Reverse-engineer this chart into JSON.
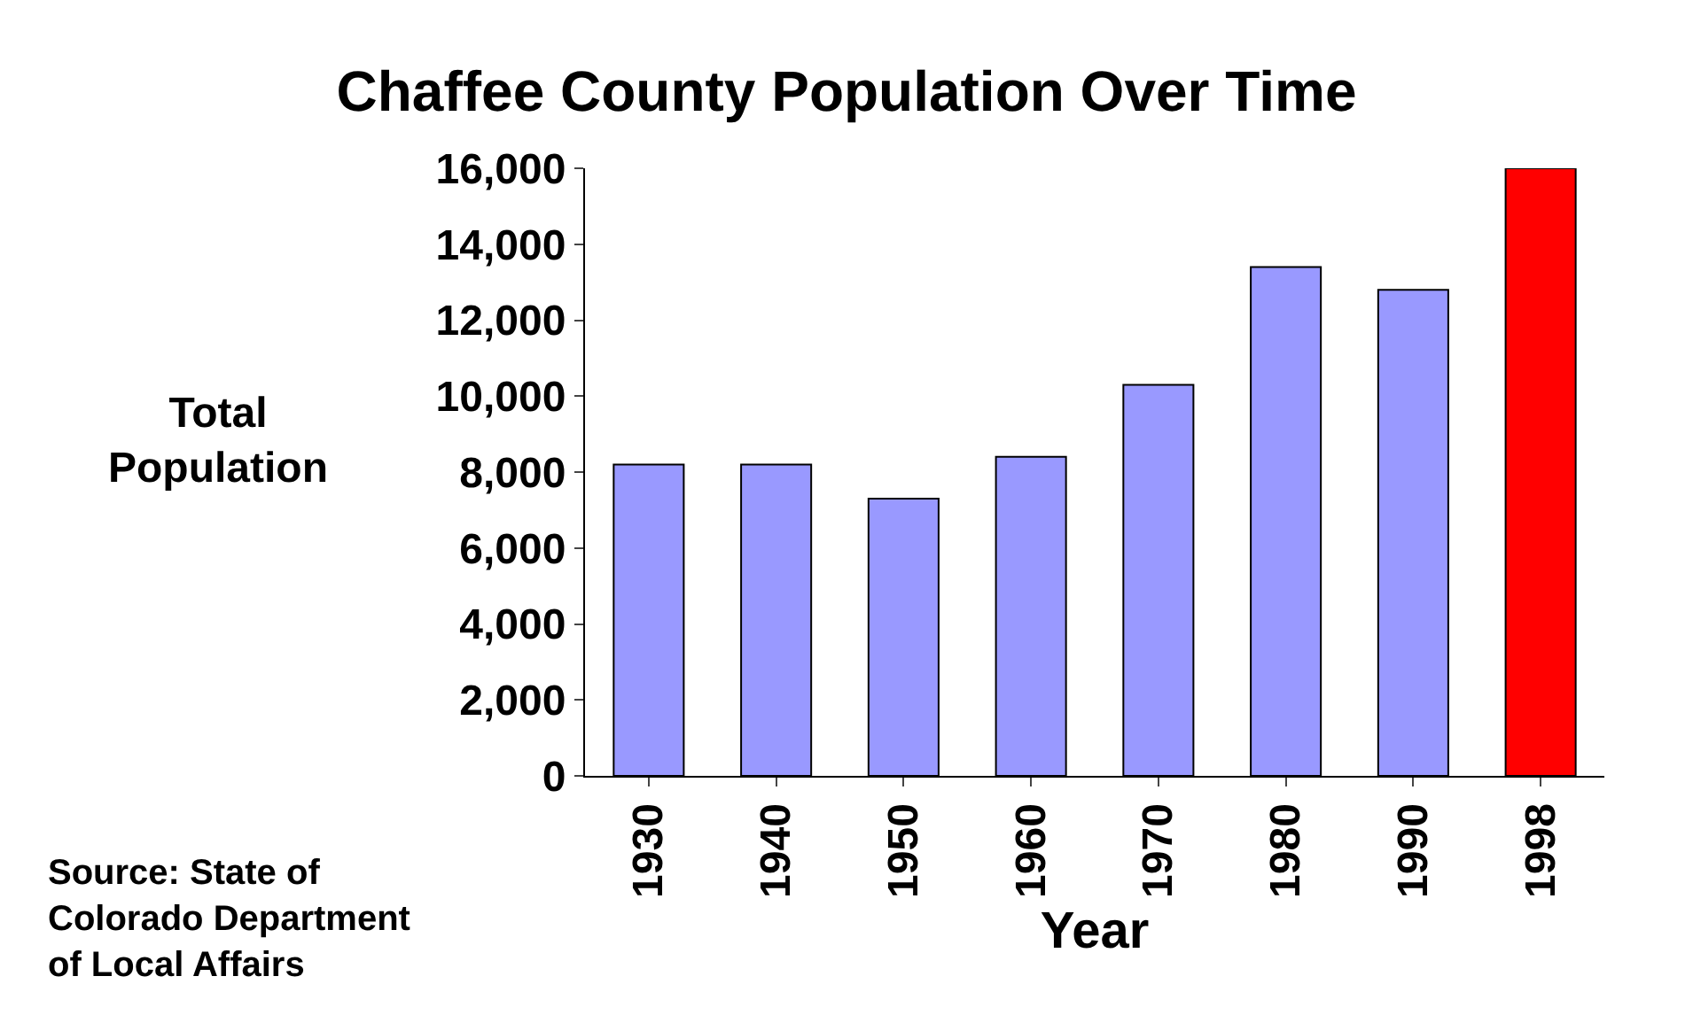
{
  "chart_data": {
    "type": "bar",
    "title": "Chaffee County Population Over Time",
    "xlabel": "Year",
    "ylabel": "Total Population",
    "categories": [
      "1930",
      "1940",
      "1950",
      "1960",
      "1970",
      "1980",
      "1990",
      "1998"
    ],
    "values": [
      8200,
      8200,
      7300,
      8400,
      10300,
      13400,
      12800,
      16000
    ],
    "colors": [
      "#9999ff",
      "#9999ff",
      "#9999ff",
      "#9999ff",
      "#9999ff",
      "#9999ff",
      "#9999ff",
      "#ff0000"
    ],
    "ylim": [
      0,
      16000
    ],
    "yticks": [
      {
        "value": 0,
        "label": "0"
      },
      {
        "value": 2000,
        "label": "2,000"
      },
      {
        "value": 4000,
        "label": "4,000"
      },
      {
        "value": 6000,
        "label": "6,000"
      },
      {
        "value": 8000,
        "label": "8,000"
      },
      {
        "value": 10000,
        "label": "10,000"
      },
      {
        "value": 12000,
        "label": "12,000"
      },
      {
        "value": 14000,
        "label": "14,000"
      },
      {
        "value": 16000,
        "label": "16,000"
      }
    ],
    "annotations": [
      "Source: State of Colorado Department of Local Affairs"
    ]
  }
}
